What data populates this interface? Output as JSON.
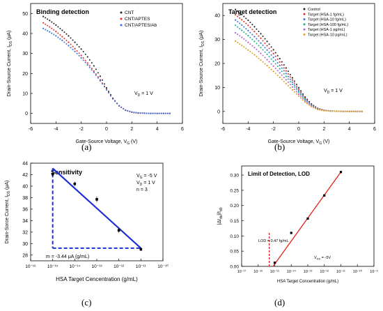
{
  "captions": [
    "(a)",
    "(b)",
    "(c)",
    "(d)"
  ],
  "chart_data": [
    {
      "type": "scatter",
      "title": "Binding detection",
      "xlabel": "Gate-Source Voltage, V_G (V)",
      "ylabel": "Drain-Source Current, I_DS (μA)",
      "xlim": [
        -6,
        6
      ],
      "ylim": [
        -5,
        55
      ],
      "xticks": [
        -6,
        -4,
        -2,
        0,
        2,
        4,
        6
      ],
      "yticks": [
        0,
        10,
        20,
        30,
        40,
        50
      ],
      "legend_position": "top-right",
      "annotation": "V_D = 1 V",
      "x": [
        -5,
        -4.5,
        -4,
        -3.5,
        -3,
        -2.5,
        -2,
        -1.5,
        -1,
        -0.5,
        0,
        0.5,
        1,
        1.5,
        2,
        2.5,
        3,
        3.5,
        4,
        4.5,
        5
      ],
      "series": [
        {
          "name": "CNT",
          "color": "#222222",
          "values": [
            48.5,
            46.5,
            44.2,
            41.6,
            38.8,
            35.6,
            32.2,
            28.3,
            23.8,
            18.6,
            12.8,
            7.6,
            3.8,
            1.6,
            0.6,
            0.2,
            0.1,
            0,
            0,
            0,
            0
          ]
        },
        {
          "name": "CNT/APTES",
          "color": "#e0302b",
          "values": [
            45.3,
            43.3,
            41.0,
            38.4,
            35.6,
            32.4,
            29.0,
            25.2,
            21.2,
            16.8,
            12.0,
            7.3,
            3.7,
            1.6,
            0.6,
            0.2,
            0.1,
            0,
            0,
            0,
            0
          ]
        },
        {
          "name": "CNT/APTES/Ab",
          "color": "#3a6fe0",
          "values": [
            42.5,
            40.8,
            38.8,
            36.5,
            33.9,
            31.0,
            27.8,
            24.3,
            20.5,
            16.3,
            11.8,
            7.3,
            3.8,
            1.7,
            0.7,
            0.3,
            0.1,
            0,
            0,
            0,
            0
          ]
        }
      ]
    },
    {
      "type": "scatter",
      "title": "Target detection",
      "xlabel": "Gate-Source Voltage, V_G (V)",
      "ylabel": "Drain-Source Current, I_DS (μA)",
      "xlim": [
        -6,
        6
      ],
      "ylim": [
        -5,
        45
      ],
      "xticks": [
        -6,
        -4,
        -2,
        0,
        2,
        4,
        6
      ],
      "yticks": [
        0,
        10,
        20,
        30,
        40
      ],
      "legend_position": "top-right",
      "annotation": "V_D = 1 V",
      "x": [
        -5,
        -4.5,
        -4,
        -3.5,
        -3,
        -2.5,
        -2,
        -1.5,
        -1,
        -0.5,
        0,
        0.5,
        1,
        1.5,
        2,
        2.5,
        3,
        3.5,
        4,
        4.5,
        5
      ],
      "series": [
        {
          "name": "Control",
          "color": "#222222",
          "values": [
            42.5,
            40.4,
            38.0,
            35.3,
            32.4,
            29.2,
            25.7,
            22.0,
            18.1,
            14.0,
            9.9,
            6.0,
            3.1,
            1.3,
            0.5,
            0.2,
            0.1,
            0,
            0,
            0,
            0
          ]
        },
        {
          "name": "Target (HSA-1 fg/mL)",
          "color": "#e0302b",
          "values": [
            40.3,
            38.2,
            35.9,
            33.3,
            30.5,
            27.4,
            24.1,
            20.6,
            16.9,
            13.1,
            9.2,
            5.6,
            2.9,
            1.2,
            0.5,
            0.2,
            0.1,
            0,
            0,
            0,
            0
          ]
        },
        {
          "name": "Target (HSA-10 fg/mL)",
          "color": "#3a6fe0",
          "values": [
            38.1,
            36.0,
            33.7,
            31.2,
            28.5,
            25.6,
            22.5,
            19.2,
            15.8,
            12.2,
            8.6,
            5.2,
            2.7,
            1.1,
            0.4,
            0.2,
            0.1,
            0,
            0,
            0,
            0
          ]
        },
        {
          "name": "Target (HSA-100 fg/mL)",
          "color": "#17b28f",
          "values": [
            35.9,
            33.8,
            31.6,
            29.2,
            26.6,
            23.8,
            20.9,
            17.8,
            14.6,
            11.3,
            8.0,
            4.9,
            2.5,
            1.0,
            0.4,
            0.2,
            0.1,
            0,
            0,
            0,
            0
          ]
        },
        {
          "name": "Target (HSA-1 pg/mL)",
          "color": "#b55cd6",
          "values": [
            32.8,
            30.9,
            28.8,
            26.6,
            24.2,
            21.6,
            18.9,
            16.1,
            13.2,
            10.2,
            7.2,
            4.4,
            2.3,
            0.9,
            0.4,
            0.1,
            0.1,
            0,
            0,
            0,
            0
          ]
        },
        {
          "name": "Target (HSA-10 pg/mL)",
          "color": "#e0a020",
          "values": [
            29.3,
            27.5,
            25.6,
            23.6,
            21.4,
            19.1,
            16.7,
            14.2,
            11.6,
            9.0,
            6.4,
            3.9,
            2.0,
            0.8,
            0.3,
            0.1,
            0.1,
            0,
            0,
            0,
            0
          ]
        }
      ]
    },
    {
      "type": "scatter",
      "title": "Sensitivity",
      "xlabel": "HSA Target Cencentration (g/mL)",
      "ylabel": "Drain-Sorce Current, I_DS (μA)",
      "xscale": "log",
      "xlim_exp": [
        -16,
        -10
      ],
      "ylim": [
        27,
        44
      ],
      "xtick_labels": [
        "10⁻¹⁶",
        "10⁻¹⁵",
        "10⁻¹⁴",
        "10⁻¹³",
        "10⁻¹²",
        "10⁻¹¹",
        "10⁻¹⁰"
      ],
      "yticks": [
        28,
        30,
        32,
        34,
        36,
        38,
        40,
        42,
        44
      ],
      "annotations": [
        "V_G = -5 V",
        "V_D = 1 V",
        "n = 3",
        "m = -3.44 μA (g/mL)"
      ],
      "points": {
        "x_exp": [
          -15,
          -14,
          -13,
          -12,
          -11
        ],
        "y": [
          42.1,
          40.4,
          37.7,
          32.3,
          29.0
        ],
        "err": [
          0.4,
          0.4,
          0.5,
          0.4,
          0.3
        ]
      },
      "fit_line": {
        "x_exp": [
          -15,
          -11
        ],
        "y": [
          43.1,
          29.2
        ]
      }
    },
    {
      "type": "scatter",
      "title": "Limit of Detection, LOD",
      "xlabel": "HSA Target Concentration (g/mL)",
      "ylabel": "|ΔI_ds|/I_d0",
      "xscale": "log",
      "xlim_exp": [
        -17,
        -9
      ],
      "ylim": [
        0,
        0.33
      ],
      "xtick_labels": [
        "10⁻¹⁷",
        "10⁻¹⁶",
        "10⁻¹⁵",
        "10⁻¹⁴",
        "10⁻¹³",
        "10⁻¹²",
        "10⁻¹¹",
        "10⁻¹⁰",
        "10⁻⁹"
      ],
      "yticks": [
        0.0,
        0.05,
        0.1,
        0.15,
        0.2,
        0.25,
        0.3
      ],
      "annotations": [
        "LOD = 0.47 fg/mL",
        "V_DS = -5V"
      ],
      "points": {
        "x_exp": [
          -15,
          -14,
          -13,
          -12,
          -11
        ],
        "y": [
          0.012,
          0.11,
          0.157,
          0.233,
          0.31
        ]
      },
      "fit_line": {
        "x_exp": [
          -15.1,
          -11
        ],
        "y": [
          0,
          0.31
        ]
      },
      "lod_x_exp": -15.33
    }
  ]
}
